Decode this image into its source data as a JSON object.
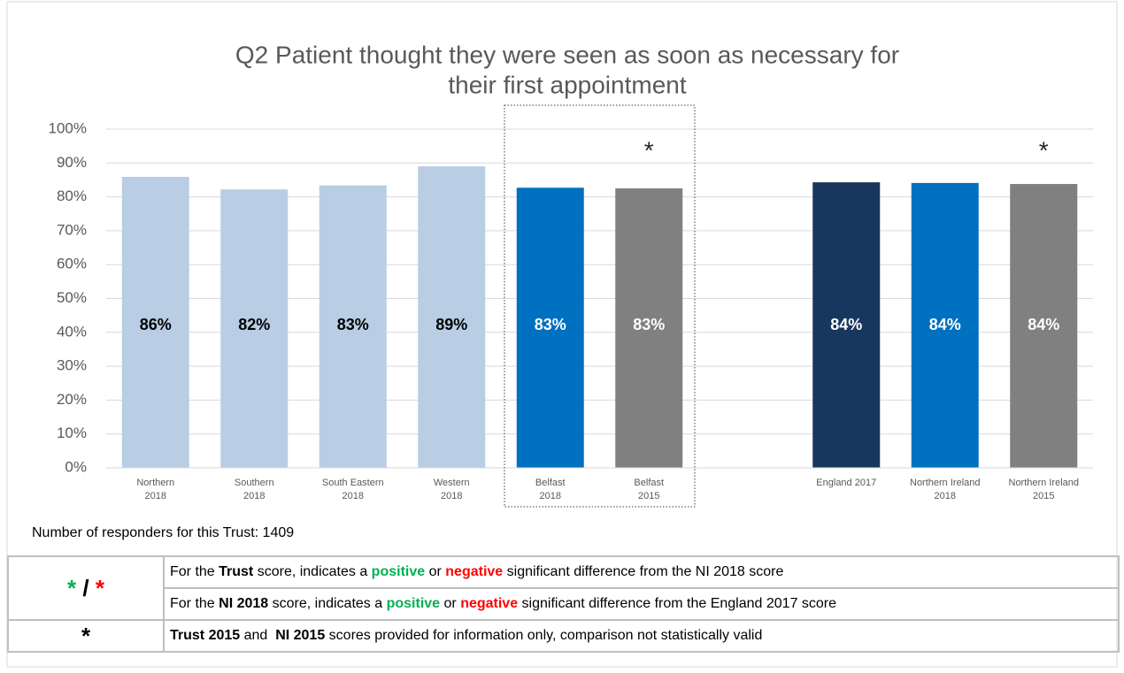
{
  "chart_data": {
    "type": "bar",
    "title": [
      "Q2 Patient thought they were seen as soon as necessary for",
      "their first appointment"
    ],
    "categories": [
      [
        "Northern",
        "2018"
      ],
      [
        "Southern",
        "2018"
      ],
      [
        "South Eastern",
        "2018"
      ],
      [
        "Western",
        "2018"
      ],
      [
        "Belfast",
        "2018"
      ],
      [
        "Belfast",
        "2015"
      ],
      null,
      [
        "England 2017"
      ],
      [
        "Northern Ireland",
        "2018"
      ],
      [
        "Northern Ireland",
        "2015"
      ]
    ],
    "values": [
      85.9,
      82.2,
      83.4,
      89.0,
      82.7,
      82.5,
      null,
      84.3,
      84.1,
      83.8
    ],
    "value_labels": [
      "86%",
      "82%",
      "83%",
      "89%",
      "83%",
      "83%",
      null,
      "84%",
      "84%",
      "84%"
    ],
    "colors": [
      "#b9cde5",
      "#b9cde5",
      "#b9cde5",
      "#b9cde5",
      "#0070c0",
      "#808080",
      null,
      "#17375e",
      "#0070c0",
      "#808080"
    ],
    "label_colors": [
      "#000000",
      "#000000",
      "#000000",
      "#000000",
      "#ffffff",
      "#ffffff",
      null,
      "#ffffff",
      "#ffffff",
      "#ffffff"
    ],
    "bar_notes": [
      null,
      null,
      null,
      null,
      null,
      "*",
      null,
      null,
      null,
      "*"
    ],
    "ylim": [
      0,
      100
    ],
    "yticks": [
      {
        "value": 0,
        "label": "0%"
      },
      {
        "value": 10,
        "label": "10%"
      },
      {
        "value": 20,
        "label": "20%"
      },
      {
        "value": 30,
        "label": "30%"
      },
      {
        "value": 40,
        "label": "40%"
      },
      {
        "value": 50,
        "label": "50%"
      },
      {
        "value": 60,
        "label": "60%"
      },
      {
        "value": 70,
        "label": "70%"
      },
      {
        "value": 80,
        "label": "80%"
      },
      {
        "value": 90,
        "label": "90%"
      },
      {
        "value": 100,
        "label": "100%"
      }
    ],
    "grid": true
  },
  "footer": "Number of responders for this Trust: 1409",
  "legend_table": [
    {
      "symbol": [
        {
          "text": "*",
          "color": "#00b050"
        },
        {
          "text": " / ",
          "color": "#000000"
        },
        {
          "text": "*",
          "color": "#ff0000"
        }
      ],
      "lines": [
        [
          {
            "text": "For the "
          },
          {
            "text": "Trust",
            "style": "bold"
          },
          {
            "text": " score, indicates a "
          },
          {
            "text": "positive",
            "style": "green"
          },
          {
            "text": " or "
          },
          {
            "text": "negative",
            "style": "red"
          },
          {
            "text": " significant difference from the NI 2018 score"
          }
        ],
        [
          {
            "text": "For the "
          },
          {
            "text": "NI 2018",
            "style": "bold"
          },
          {
            "text": " score, indicates a "
          },
          {
            "text": "positive",
            "style": "green"
          },
          {
            "text": " or "
          },
          {
            "text": "negative",
            "style": "red"
          },
          {
            "text": " significant difference from the England 2017 score"
          }
        ]
      ]
    },
    {
      "symbol": [
        {
          "text": "*",
          "color": "#000000"
        }
      ],
      "lines": [
        [
          {
            "text": "Trust 2015",
            "style": "bold"
          },
          {
            "text": " and  "
          },
          {
            "text": "NI 2015",
            "style": "bold"
          },
          {
            "text": " scores provided for information only, comparison not statistically valid"
          }
        ]
      ]
    }
  ]
}
